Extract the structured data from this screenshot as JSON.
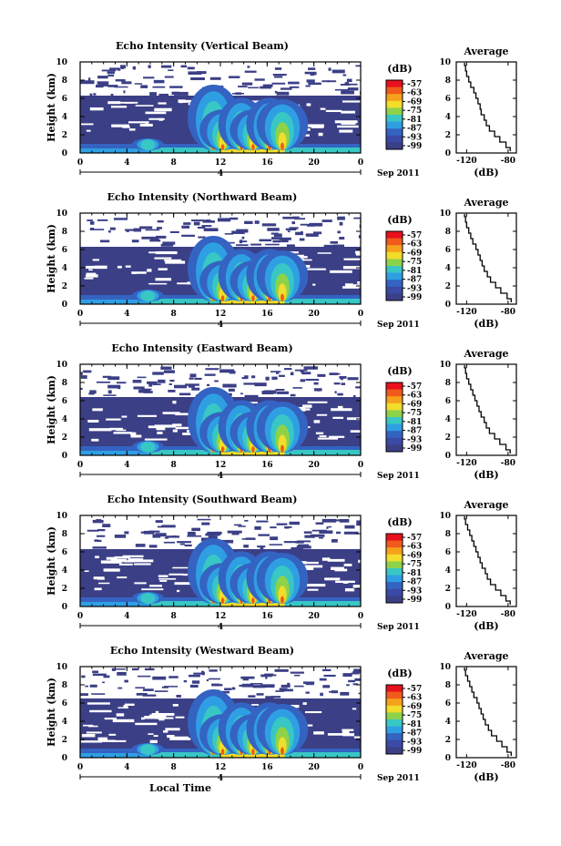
{
  "chart_data": [
    {
      "type": "heatmap",
      "title": "Echo Intensity (Vertical Beam)",
      "ylabel": "Height (km)",
      "xticks": [
        "0",
        "4",
        "8",
        "12",
        "16",
        "20",
        "0"
      ],
      "yticks": [
        "0",
        "2",
        "4",
        "6",
        "8",
        "10"
      ],
      "xlim": [
        0,
        24
      ],
      "ylim": [
        0,
        10
      ],
      "date_marker": "4",
      "date_label": "Sep 2011",
      "colorbar": {
        "unit": "(dB)",
        "ticks": [
          "-57",
          "-63",
          "-69",
          "-75",
          "-81",
          "-87",
          "-93",
          "-99"
        ]
      },
      "echo_top_km": 6.3,
      "convective_cells_local_hour": [
        5.8,
        11.4,
        12.2,
        13.8,
        14.8,
        16.2,
        17.3
      ],
      "average_profile": {
        "title": "Average",
        "xlabel": "(dB)",
        "xticks": [
          "-120",
          "-80"
        ],
        "xlim": [
          -130,
          -72
        ],
        "yticks": [
          "0",
          "2",
          "4",
          "6",
          "8",
          "10"
        ],
        "ylim": [
          0,
          10
        ],
        "x": [
          -78,
          -82,
          -88,
          -93,
          -98,
          -101,
          -103,
          -106,
          -107,
          -109,
          -111,
          -113,
          -116,
          -118,
          -120,
          -121,
          -122
        ],
        "y": [
          0.2,
          0.6,
          1.2,
          1.8,
          2.4,
          3.0,
          3.6,
          4.2,
          4.8,
          5.4,
          6.0,
          6.6,
          7.2,
          7.8,
          8.4,
          9.0,
          9.6
        ]
      }
    },
    {
      "type": "heatmap",
      "title": "Echo Intensity (Northward Beam)",
      "ylabel": "Height (km)",
      "xticks": [
        "0",
        "4",
        "8",
        "12",
        "16",
        "20",
        "0"
      ],
      "yticks": [
        "0",
        "2",
        "4",
        "6",
        "8",
        "10"
      ],
      "xlim": [
        0,
        24
      ],
      "ylim": [
        0,
        10
      ],
      "date_marker": "4",
      "date_label": "Sep 2011",
      "colorbar": {
        "unit": "(dB)",
        "ticks": [
          "-57",
          "-63",
          "-69",
          "-75",
          "-81",
          "-87",
          "-93",
          "-99"
        ]
      },
      "echo_top_km": 6.3,
      "convective_cells_local_hour": [
        5.8,
        11.4,
        12.2,
        13.8,
        14.8,
        16.2,
        17.3
      ],
      "average_profile": {
        "title": "Average",
        "xlabel": "(dB)",
        "xticks": [
          "-120",
          "-80"
        ],
        "xlim": [
          -130,
          -72
        ],
        "yticks": [
          "0",
          "2",
          "4",
          "6",
          "8",
          "10"
        ],
        "ylim": [
          0,
          10
        ],
        "x": [
          -77,
          -81,
          -87,
          -92,
          -97,
          -100,
          -103,
          -105,
          -107,
          -109,
          -111,
          -114,
          -116,
          -118,
          -120,
          -121,
          -122
        ],
        "y": [
          0.2,
          0.6,
          1.2,
          1.8,
          2.4,
          3.0,
          3.6,
          4.2,
          4.8,
          5.4,
          6.0,
          6.6,
          7.2,
          7.8,
          8.4,
          9.0,
          9.6
        ]
      }
    },
    {
      "type": "heatmap",
      "title": "Echo Intensity (Eastward Beam)",
      "ylabel": "Height (km)",
      "xticks": [
        "0",
        "4",
        "8",
        "12",
        "16",
        "20",
        "0"
      ],
      "yticks": [
        "0",
        "2",
        "4",
        "6",
        "8",
        "10"
      ],
      "xlim": [
        0,
        24
      ],
      "ylim": [
        0,
        10
      ],
      "date_marker": "4",
      "date_label": "Sep 2011",
      "colorbar": {
        "unit": "(dB)",
        "ticks": [
          "-57",
          "-63",
          "-69",
          "-75",
          "-81",
          "-87",
          "-93",
          "-99"
        ]
      },
      "echo_top_km": 6.4,
      "convective_cells_local_hour": [
        5.8,
        11.4,
        12.2,
        13.8,
        14.8,
        16.2,
        17.3
      ],
      "average_profile": {
        "title": "Average",
        "xlabel": "(dB)",
        "xticks": [
          "-120",
          "-80"
        ],
        "xlim": [
          -130,
          -72
        ],
        "yticks": [
          "0",
          "2",
          "4",
          "6",
          "8",
          "10"
        ],
        "ylim": [
          0,
          10
        ],
        "x": [
          -78,
          -82,
          -88,
          -93,
          -98,
          -101,
          -103,
          -106,
          -108,
          -110,
          -112,
          -114,
          -116,
          -118,
          -120,
          -121,
          -122
        ],
        "y": [
          0.2,
          0.6,
          1.2,
          1.8,
          2.4,
          3.0,
          3.6,
          4.2,
          4.8,
          5.4,
          6.0,
          6.6,
          7.2,
          7.8,
          8.4,
          9.0,
          9.6
        ]
      }
    },
    {
      "type": "heatmap",
      "title": "Echo Intensity (Southward Beam)",
      "ylabel": "Height (km)",
      "xticks": [
        "0",
        "4",
        "8",
        "12",
        "16",
        "20",
        "0"
      ],
      "yticks": [
        "0",
        "2",
        "4",
        "6",
        "8",
        "10"
      ],
      "xlim": [
        0,
        24
      ],
      "ylim": [
        0,
        10
      ],
      "date_marker": "4",
      "date_label": "Sep 2011",
      "colorbar": {
        "unit": "(dB)",
        "ticks": [
          "-57",
          "-63",
          "-69",
          "-75",
          "-81",
          "-87",
          "-93",
          "-99"
        ]
      },
      "echo_top_km": 6.3,
      "convective_cells_local_hour": [
        5.8,
        11.4,
        12.2,
        13.8,
        14.8,
        16.2,
        17.3
      ],
      "average_profile": {
        "title": "Average",
        "xlabel": "(dB)",
        "xticks": [
          "-120",
          "-80"
        ],
        "xlim": [
          -130,
          -72
        ],
        "yticks": [
          "0",
          "2",
          "4",
          "6",
          "8",
          "10"
        ],
        "ylim": [
          0,
          10
        ],
        "x": [
          -78,
          -82,
          -87,
          -92,
          -97,
          -100,
          -102,
          -105,
          -107,
          -109,
          -111,
          -113,
          -115,
          -117,
          -119,
          -121,
          -122
        ],
        "y": [
          0.2,
          0.6,
          1.2,
          1.8,
          2.4,
          3.0,
          3.6,
          4.2,
          4.8,
          5.4,
          6.0,
          6.6,
          7.2,
          7.8,
          8.4,
          9.0,
          9.6
        ]
      }
    },
    {
      "type": "heatmap",
      "title": "Echo Intensity (Westward Beam)",
      "ylabel": "Height (km)",
      "xlabel": "Local Time",
      "xticks": [
        "0",
        "4",
        "8",
        "12",
        "16",
        "20",
        "0"
      ],
      "yticks": [
        "0",
        "2",
        "4",
        "6",
        "8",
        "10"
      ],
      "xlim": [
        0,
        24
      ],
      "ylim": [
        0,
        10
      ],
      "date_marker": "4",
      "date_label": "Sep 2011",
      "colorbar": {
        "unit": "(dB)",
        "ticks": [
          "-57",
          "-63",
          "-69",
          "-75",
          "-81",
          "-87",
          "-93",
          "-99"
        ]
      },
      "echo_top_km": 6.5,
      "convective_cells_local_hour": [
        5.8,
        11.4,
        12.2,
        13.8,
        14.8,
        16.2,
        17.3
      ],
      "average_profile": {
        "title": "Average",
        "xlabel": "(dB)",
        "xticks": [
          "-120",
          "-80"
        ],
        "xlim": [
          -130,
          -72
        ],
        "yticks": [
          "0",
          "2",
          "4",
          "6",
          "8",
          "10"
        ],
        "ylim": [
          0,
          10
        ],
        "x": [
          -77,
          -81,
          -86,
          -91,
          -96,
          -99,
          -102,
          -104,
          -106,
          -108,
          -110,
          -113,
          -115,
          -117,
          -119,
          -121,
          -122
        ],
        "y": [
          0.2,
          0.6,
          1.2,
          1.8,
          2.4,
          3.0,
          3.6,
          4.2,
          4.8,
          5.4,
          6.0,
          6.6,
          7.2,
          7.8,
          8.4,
          9.0,
          9.6
        ]
      }
    }
  ],
  "colorscale": [
    "#e8101c",
    "#f05a1a",
    "#f5a11c",
    "#f2dd2a",
    "#8ed24a",
    "#38c7c4",
    "#2f9fe3",
    "#3463c2",
    "#3a4aa5",
    "#3b3f86"
  ],
  "background_color": "#3b3f86"
}
